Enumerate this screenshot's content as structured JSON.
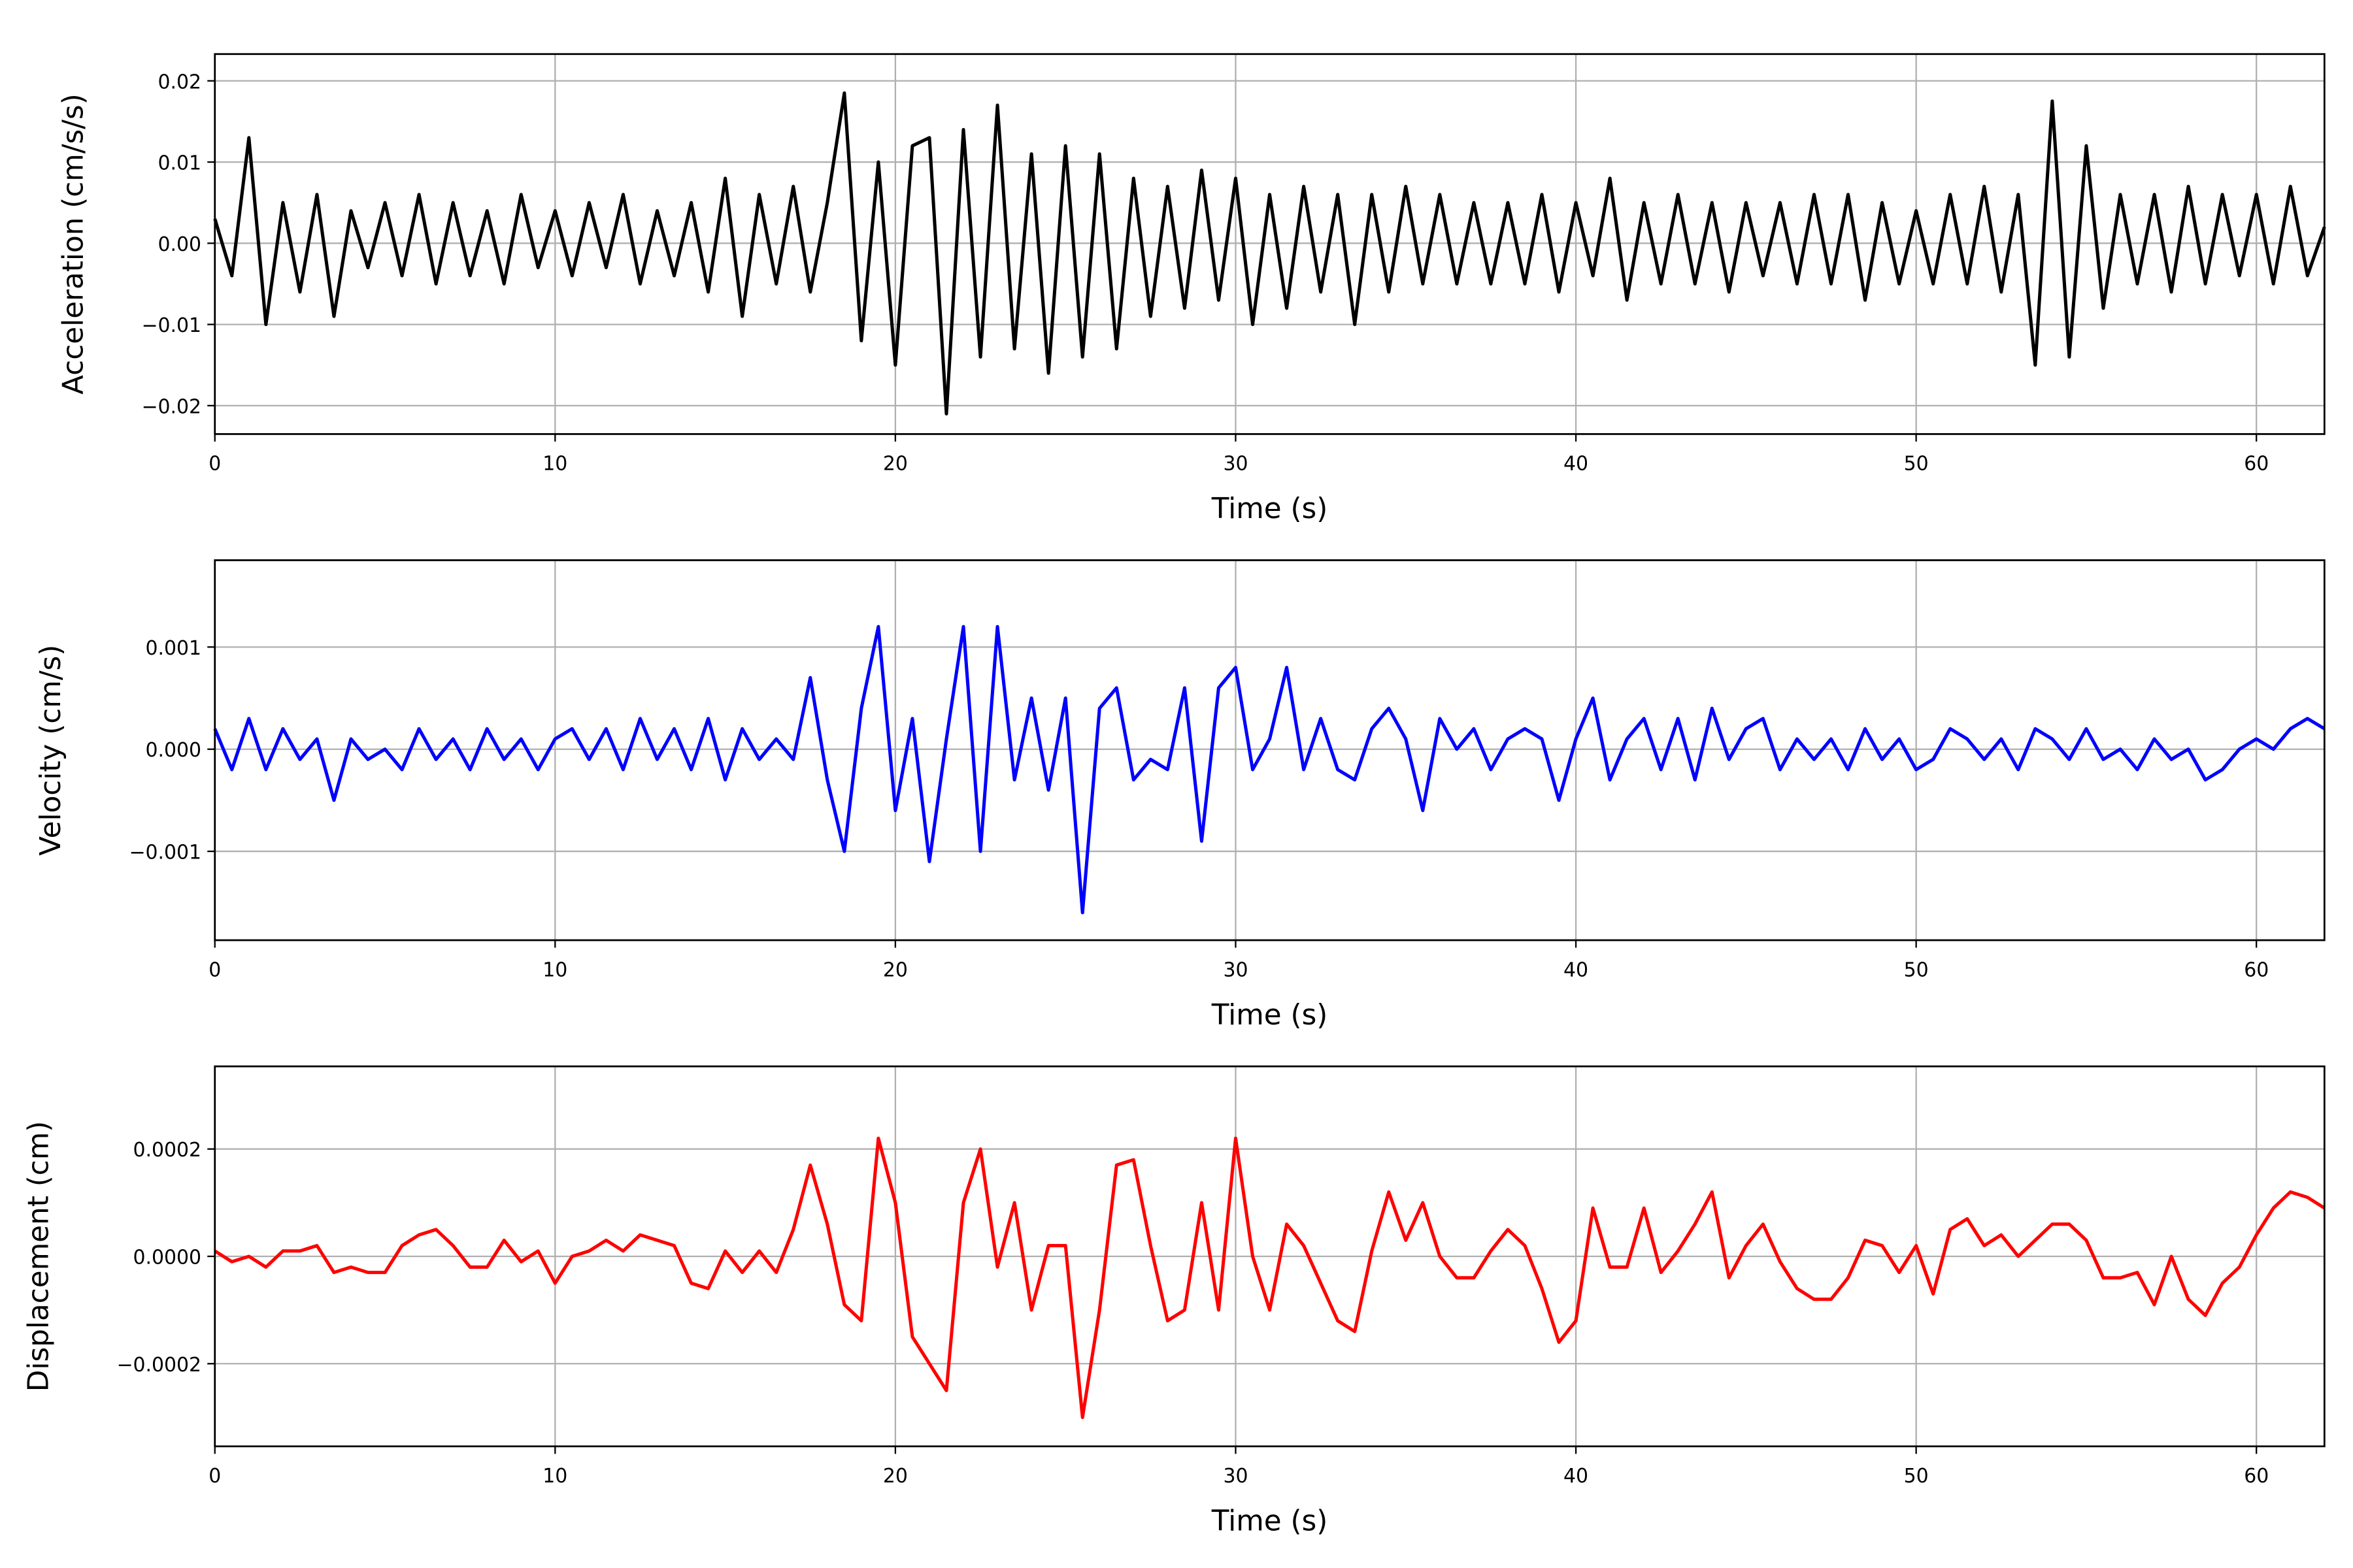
{
  "chart_data": [
    {
      "type": "line",
      "xlabel": "Time (s)",
      "ylabel": "Acceleration (cm/s/s)",
      "color": "#000000",
      "grid": true,
      "xlim": [
        0,
        62
      ],
      "xticks": [
        0,
        10,
        20,
        30,
        40,
        50,
        60
      ],
      "ylim": [
        -0.0235,
        0.0233
      ],
      "yticks": [
        {
          "value": -0.02,
          "label": "−0.02"
        },
        {
          "value": -0.01,
          "label": "−0.01"
        },
        {
          "value": 0,
          "label": "0.00"
        },
        {
          "value": 0.01,
          "label": "0.01"
        },
        {
          "value": 0.02,
          "label": "0.02"
        }
      ],
      "x": [
        0,
        0.5,
        1,
        1.5,
        2,
        2.5,
        3,
        3.5,
        4,
        4.5,
        5,
        5.5,
        6,
        6.5,
        7,
        7.5,
        8,
        8.5,
        9,
        9.5,
        10,
        10.5,
        11,
        11.5,
        12,
        12.5,
        13,
        13.5,
        14,
        14.5,
        15,
        15.5,
        16,
        16.5,
        17,
        17.5,
        18,
        18.5,
        19,
        19.5,
        20,
        20.5,
        21,
        21.5,
        22,
        22.5,
        23,
        23.5,
        24,
        24.5,
        25,
        25.5,
        26,
        26.5,
        27,
        27.5,
        28,
        28.5,
        29,
        29.5,
        30,
        30.5,
        31,
        31.5,
        32,
        32.5,
        33,
        33.5,
        34,
        34.5,
        35,
        35.5,
        36,
        36.5,
        37,
        37.5,
        38,
        38.5,
        39,
        39.5,
        40,
        40.5,
        41,
        41.5,
        42,
        42.5,
        43,
        43.5,
        44,
        44.5,
        45,
        45.5,
        46,
        46.5,
        47,
        47.5,
        48,
        48.5,
        49,
        49.5,
        50,
        50.5,
        51,
        51.5,
        52,
        52.5,
        53,
        53.5,
        54,
        54.5,
        55,
        55.5,
        56,
        56.5,
        57,
        57.5,
        58,
        58.5,
        59,
        59.5,
        60,
        60.5,
        61,
        61.5,
        62
      ],
      "values": [
        0.003,
        -0.004,
        0.013,
        -0.01,
        0.005,
        -0.006,
        0.006,
        -0.009,
        0.004,
        -0.003,
        0.005,
        -0.004,
        0.006,
        -0.005,
        0.005,
        -0.004,
        0.004,
        -0.005,
        0.006,
        -0.003,
        0.004,
        -0.004,
        0.005,
        -0.003,
        0.006,
        -0.005,
        0.004,
        -0.004,
        0.005,
        -0.006,
        0.008,
        -0.009,
        0.006,
        -0.005,
        0.007,
        -0.006,
        0.005,
        0.0185,
        -0.012,
        0.01,
        -0.015,
        0.012,
        0.013,
        -0.021,
        0.014,
        -0.014,
        0.017,
        -0.013,
        0.011,
        -0.016,
        0.012,
        -0.014,
        0.011,
        -0.013,
        0.008,
        -0.009,
        0.007,
        -0.008,
        0.009,
        -0.007,
        0.008,
        -0.01,
        0.006,
        -0.008,
        0.007,
        -0.006,
        0.006,
        -0.01,
        0.006,
        -0.006,
        0.007,
        -0.005,
        0.006,
        -0.005,
        0.005,
        -0.005,
        0.005,
        -0.005,
        0.006,
        -0.006,
        0.005,
        -0.004,
        0.008,
        -0.007,
        0.005,
        -0.005,
        0.006,
        -0.005,
        0.005,
        -0.006,
        0.005,
        -0.004,
        0.005,
        -0.005,
        0.006,
        -0.005,
        0.006,
        -0.007,
        0.005,
        -0.005,
        0.004,
        -0.005,
        0.006,
        -0.005,
        0.007,
        -0.006,
        0.006,
        -0.015,
        0.0175,
        -0.014,
        0.012,
        -0.008,
        0.006,
        -0.005,
        0.006,
        -0.006,
        0.007,
        -0.005,
        0.006,
        -0.004,
        0.006,
        -0.005,
        0.007,
        -0.004,
        0.002
      ]
    },
    {
      "type": "line",
      "xlabel": "Time (s)",
      "ylabel": "Velocity (cm/s)",
      "color": "#0000ff",
      "grid": true,
      "xlim": [
        0,
        62
      ],
      "xticks": [
        0,
        10,
        20,
        30,
        40,
        50,
        60
      ],
      "ylim": [
        -0.00187,
        0.00185
      ],
      "yticks": [
        {
          "value": -0.001,
          "label": "−0.001"
        },
        {
          "value": 0,
          "label": "0.000"
        },
        0.001
      ],
      "x": [
        0,
        0.5,
        1,
        1.5,
        2,
        2.5,
        3,
        3.5,
        4,
        4.5,
        5,
        5.5,
        6,
        6.5,
        7,
        7.5,
        8,
        8.5,
        9,
        9.5,
        10,
        10.5,
        11,
        11.5,
        12,
        12.5,
        13,
        13.5,
        14,
        14.5,
        15,
        15.5,
        16,
        16.5,
        17,
        17.5,
        18,
        18.5,
        19,
        19.5,
        20,
        20.5,
        21,
        21.5,
        22,
        22.5,
        23,
        23.5,
        24,
        24.5,
        25,
        25.5,
        26,
        26.5,
        27,
        27.5,
        28,
        28.5,
        29,
        29.5,
        30,
        30.5,
        31,
        31.5,
        32,
        32.5,
        33,
        33.5,
        34,
        34.5,
        35,
        35.5,
        36,
        36.5,
        37,
        37.5,
        38,
        38.5,
        39,
        39.5,
        40,
        40.5,
        41,
        41.5,
        42,
        42.5,
        43,
        43.5,
        44,
        44.5,
        45,
        45.5,
        46,
        46.5,
        47,
        47.5,
        48,
        48.5,
        49,
        49.5,
        50,
        50.5,
        51,
        51.5,
        52,
        52.5,
        53,
        53.5,
        54,
        54.5,
        55,
        55.5,
        56,
        56.5,
        57,
        57.5,
        58,
        58.5,
        59,
        59.5,
        60,
        60.5,
        61,
        61.5,
        62
      ],
      "values": [
        0.0002,
        -0.0002,
        0.0003,
        -0.0002,
        0.0002,
        -0.0001,
        0.0001,
        -0.0005,
        0.0001,
        -0.0001,
        0,
        -0.0002,
        0.0002,
        -0.0001,
        0.0001,
        -0.0002,
        0.0002,
        -0.0001,
        0.0001,
        -0.0002,
        0.0001,
        0.0002,
        -0.0001,
        0.0002,
        -0.0002,
        0.0003,
        -0.0001,
        0.0002,
        -0.0002,
        0.0003,
        -0.0003,
        0.0002,
        -0.0001,
        0.0001,
        -0.0001,
        0.0007,
        -0.0003,
        -0.001,
        0.0004,
        0.0012,
        -0.0006,
        0.0003,
        -0.0011,
        0.0001,
        0.0012,
        -0.001,
        0.0012,
        -0.0003,
        0.0005,
        -0.0004,
        0.0005,
        -0.0016,
        0.0004,
        0.0006,
        -0.0003,
        -0.0001,
        -0.0002,
        0.0006,
        -0.0009,
        0.0006,
        0.0008,
        -0.0002,
        0.0001,
        0.0008,
        -0.0002,
        0.0003,
        -0.0002,
        -0.0003,
        0.0002,
        0.0004,
        0.0001,
        -0.0006,
        0.0003,
        0,
        0.0002,
        -0.0002,
        0.0001,
        0.0002,
        0.0001,
        -0.0005,
        0.0001,
        0.0005,
        -0.0003,
        0.0001,
        0.0003,
        -0.0002,
        0.0003,
        -0.0003,
        0.0004,
        -0.0001,
        0.0002,
        0.0003,
        -0.0002,
        0.0001,
        -0.0001,
        0.0001,
        -0.0002,
        0.0002,
        -0.0001,
        0.0001,
        -0.0002,
        -0.0001,
        0.0002,
        0.0001,
        -0.0001,
        0.0001,
        -0.0002,
        0.0002,
        0.0001,
        -0.0001,
        0.0002,
        -0.0001,
        0,
        -0.0002,
        0.0001,
        -0.0001,
        0,
        -0.0003,
        -0.0002,
        0,
        0.0001,
        0,
        0.0002,
        0.0003,
        0.0002
      ]
    },
    {
      "type": "line",
      "xlabel": "Time (s)",
      "ylabel": "Displacement (cm)",
      "color": "#ff0000",
      "grid": true,
      "xlim": [
        0,
        62
      ],
      "xticks": [
        0,
        10,
        20,
        30,
        40,
        50,
        60
      ],
      "ylim": [
        -0.000354,
        0.000354
      ],
      "yticks": [
        {
          "value": -0.0002,
          "label": "−0.0002"
        },
        {
          "value": 0,
          "label": "0.0000"
        },
        0.0002
      ],
      "x": [
        0,
        0.5,
        1,
        1.5,
        2,
        2.5,
        3,
        3.5,
        4,
        4.5,
        5,
        5.5,
        6,
        6.5,
        7,
        7.5,
        8,
        8.5,
        9,
        9.5,
        10,
        10.5,
        11,
        11.5,
        12,
        12.5,
        13,
        13.5,
        14,
        14.5,
        15,
        15.5,
        16,
        16.5,
        17,
        17.5,
        18,
        18.5,
        19,
        19.5,
        20,
        20.5,
        21,
        21.5,
        22,
        22.5,
        23,
        23.5,
        24,
        24.5,
        25,
        25.5,
        26,
        26.5,
        27,
        27.5,
        28,
        28.5,
        29,
        29.5,
        30,
        30.5,
        31,
        31.5,
        32,
        32.5,
        33,
        33.5,
        34,
        34.5,
        35,
        35.5,
        36,
        36.5,
        37,
        37.5,
        38,
        38.5,
        39,
        39.5,
        40,
        40.5,
        41,
        41.5,
        42,
        42.5,
        43,
        43.5,
        44,
        44.5,
        45,
        45.5,
        46,
        46.5,
        47,
        47.5,
        48,
        48.5,
        49,
        49.5,
        50,
        50.5,
        51,
        51.5,
        52,
        52.5,
        53,
        53.5,
        54,
        54.5,
        55,
        55.5,
        56,
        56.5,
        57,
        57.5,
        58,
        58.5,
        59,
        59.5,
        60,
        60.5,
        61,
        61.5,
        62
      ],
      "values": [
        1e-05,
        -1e-05,
        0,
        -2e-05,
        1e-05,
        1e-05,
        2e-05,
        -3e-05,
        -2e-05,
        -3e-05,
        -3e-05,
        2e-05,
        4e-05,
        5e-05,
        2e-05,
        -2e-05,
        -2e-05,
        3e-05,
        -1e-05,
        1e-05,
        -5e-05,
        0,
        1e-05,
        3e-05,
        1e-05,
        4e-05,
        3e-05,
        2e-05,
        -5e-05,
        -6e-05,
        1e-05,
        -3e-05,
        1e-05,
        -3e-05,
        5e-05,
        0.00017,
        6e-05,
        -9e-05,
        -0.00012,
        0.00022,
        0.0001,
        -0.00015,
        -0.0002,
        -0.00025,
        0.0001,
        0.0002,
        -2e-05,
        0.0001,
        -0.0001,
        2e-05,
        2e-05,
        -0.0003,
        -0.0001,
        0.00017,
        0.00018,
        2e-05,
        -0.00012,
        -0.0001,
        0.0001,
        -0.0001,
        0.00022,
        0,
        -0.0001,
        6e-05,
        2e-05,
        -5e-05,
        -0.00012,
        -0.00014,
        1e-05,
        0.00012,
        3e-05,
        0.0001,
        0,
        -4e-05,
        -4e-05,
        1e-05,
        5e-05,
        2e-05,
        -6e-05,
        -0.00016,
        -0.00012,
        9e-05,
        -2e-05,
        -2e-05,
        9e-05,
        -3e-05,
        1e-05,
        6e-05,
        0.00012,
        -4e-05,
        2e-05,
        6e-05,
        -1e-05,
        -6e-05,
        -8e-05,
        -8e-05,
        -4e-05,
        3e-05,
        2e-05,
        -3e-05,
        2e-05,
        -7e-05,
        5e-05,
        7e-05,
        2e-05,
        4e-05,
        0,
        3e-05,
        6e-05,
        6e-05,
        3e-05,
        -4e-05,
        -4e-05,
        -3e-05,
        -9e-05,
        0,
        -8e-05,
        -0.00011,
        -5e-05,
        -2e-05,
        4e-05,
        9e-05,
        0.00012,
        0.00011,
        9e-05
      ]
    }
  ]
}
